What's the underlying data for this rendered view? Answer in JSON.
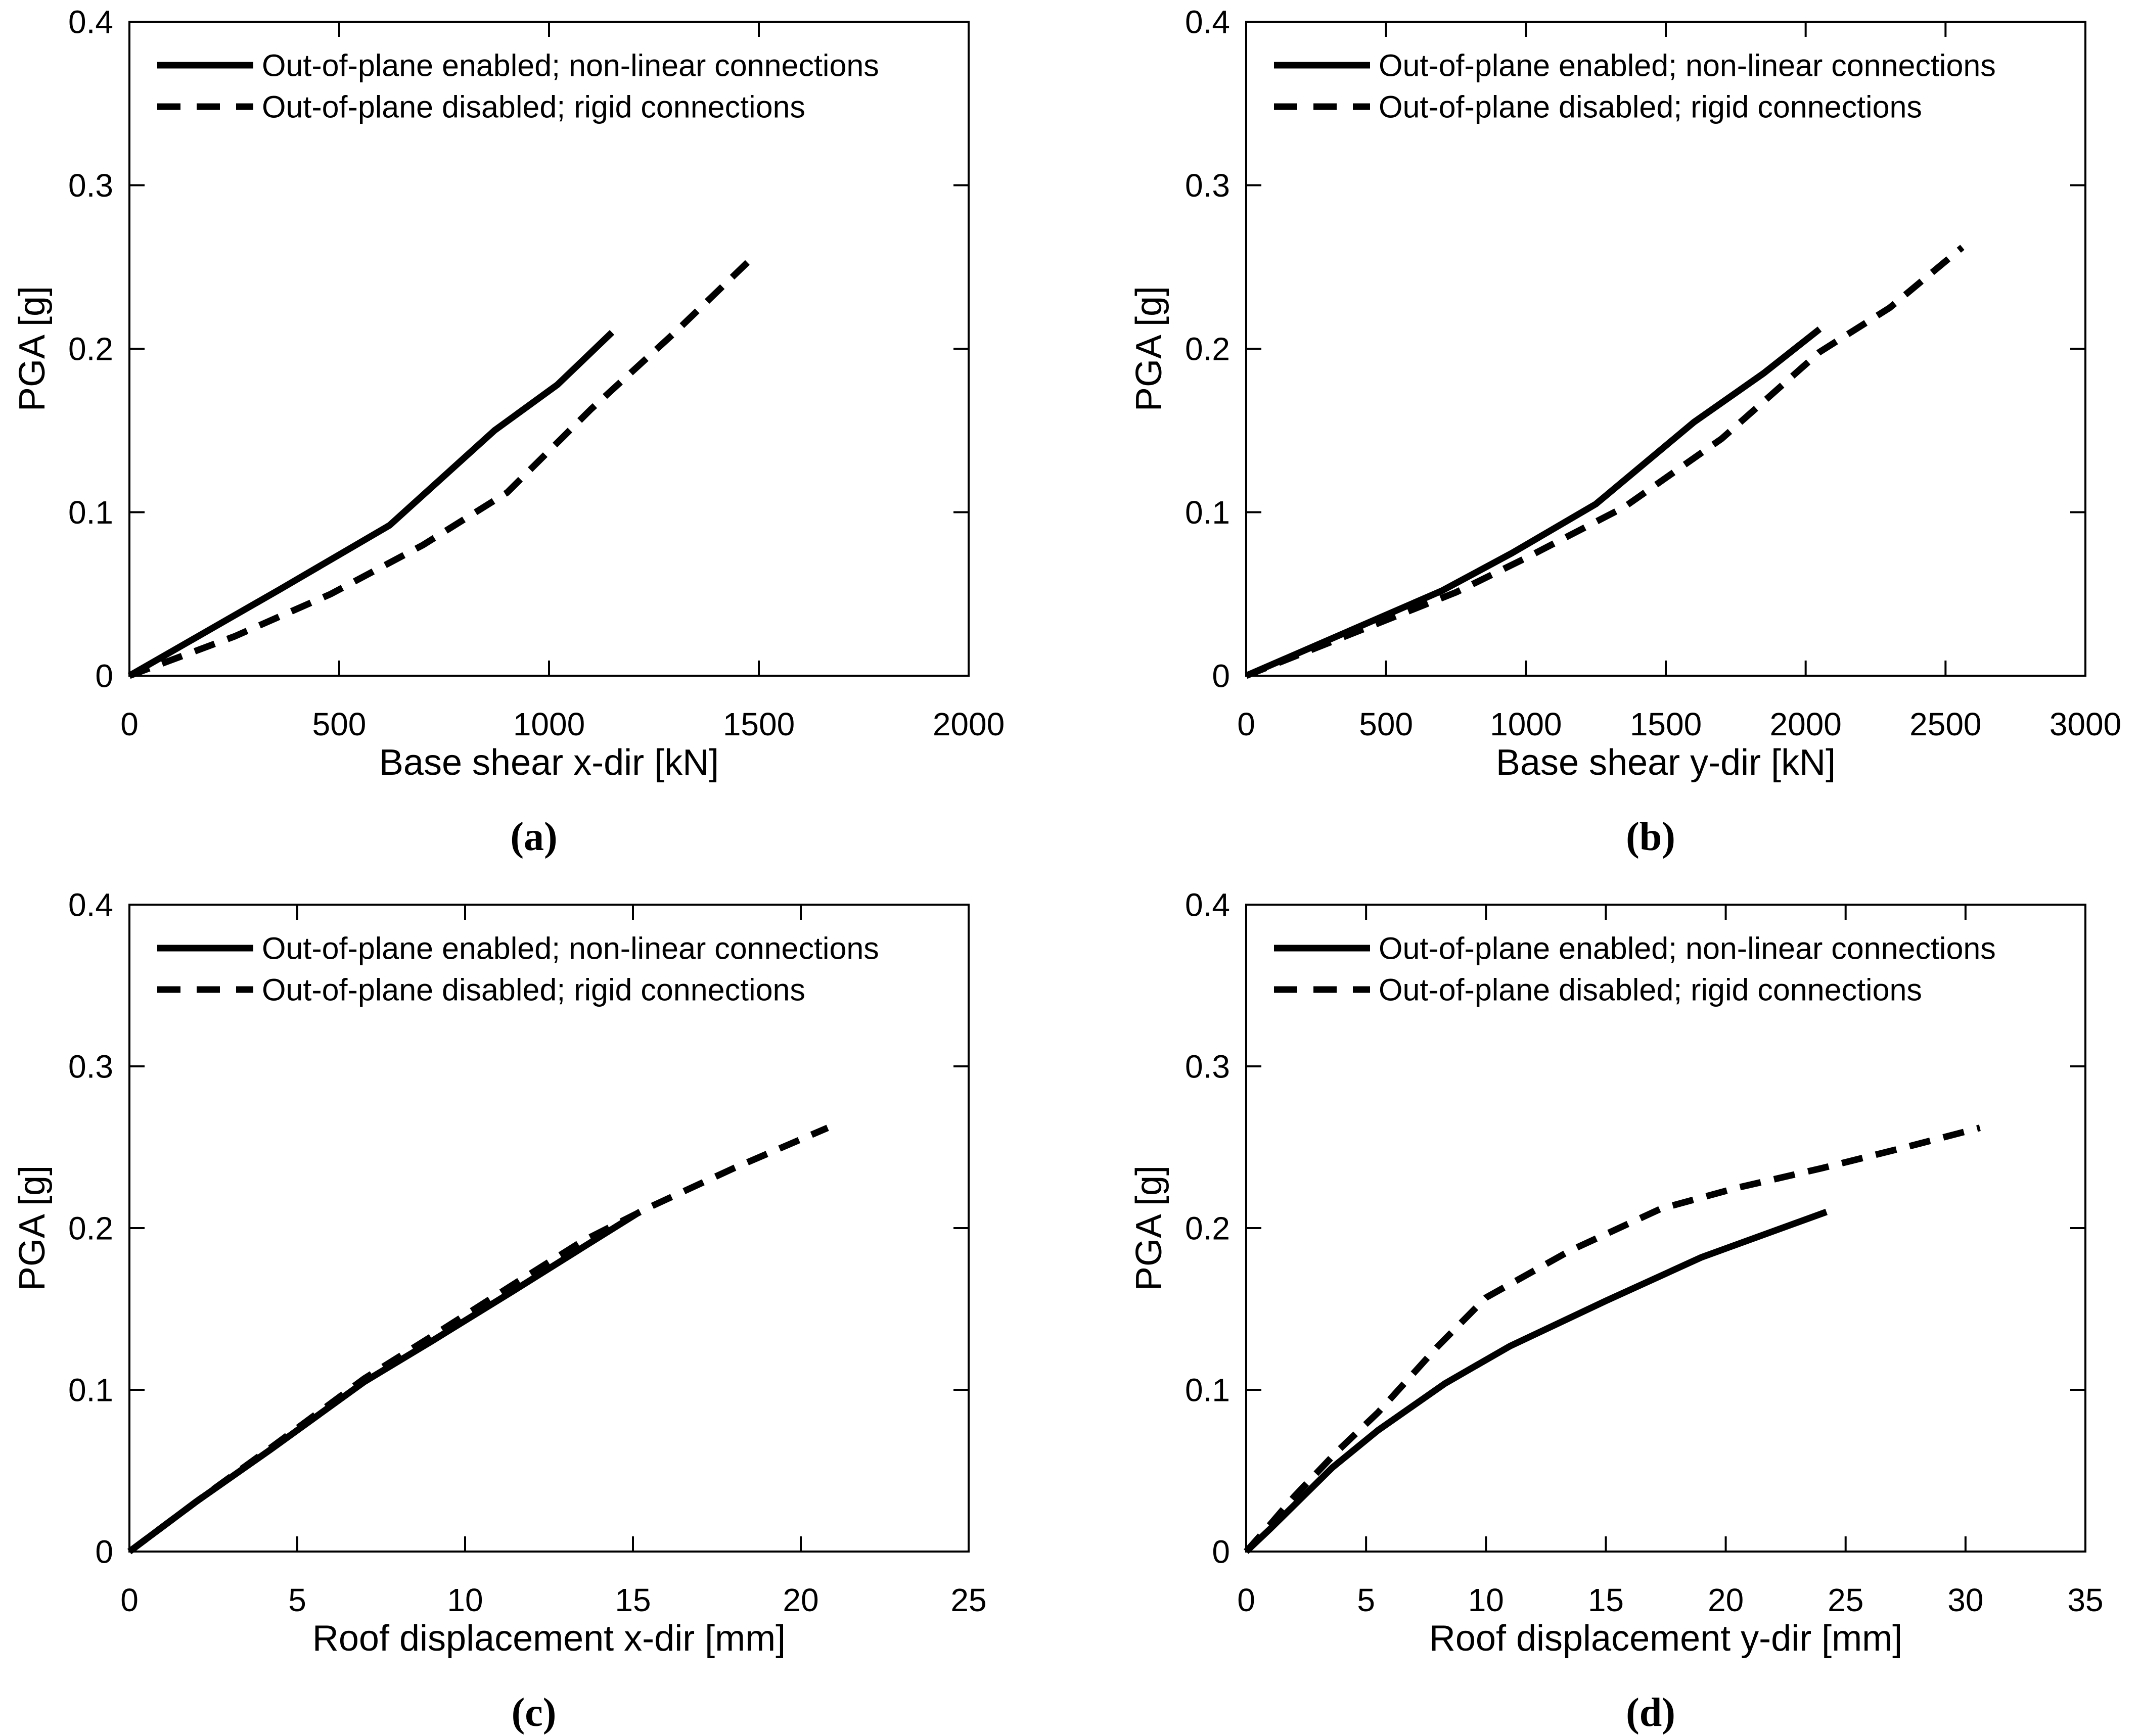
{
  "figure_title": "",
  "chart_data": [
    {
      "id": "a",
      "type": "line",
      "panel_label": "(a)",
      "xlabel": "Base shear x-dir [kN]",
      "ylabel": "PGA [g]",
      "xlim": [
        0,
        2000
      ],
      "ylim": [
        0,
        0.4
      ],
      "xticks": [
        0,
        500,
        1000,
        1500,
        2000
      ],
      "yticks": [
        0,
        0.1,
        0.2,
        0.3,
        0.4
      ],
      "grid": false,
      "legend_position": "top-left",
      "series": [
        {
          "name": "Out-of-plane enabled; non-linear connections",
          "style": "solid",
          "x": [
            0,
            360,
            620,
            870,
            1020,
            1150
          ],
          "y": [
            0,
            0.053,
            0.092,
            0.15,
            0.178,
            0.21
          ]
        },
        {
          "name": "Out-of-plane disabled; rigid connections",
          "style": "dashed",
          "x": [
            0,
            250,
            480,
            700,
            900,
            1100,
            1300,
            1490
          ],
          "y": [
            0,
            0.024,
            0.05,
            0.08,
            0.112,
            0.163,
            0.21,
            0.257
          ]
        }
      ]
    },
    {
      "id": "b",
      "type": "line",
      "panel_label": "(b)",
      "xlabel": "Base shear y-dir [kN]",
      "ylabel": "PGA [g]",
      "xlim": [
        0,
        3000
      ],
      "ylim": [
        0,
        0.4
      ],
      "xticks": [
        0,
        500,
        1000,
        1500,
        2000,
        2500,
        3000
      ],
      "yticks": [
        0,
        0.1,
        0.2,
        0.3,
        0.4
      ],
      "grid": false,
      "legend_position": "top-left",
      "series": [
        {
          "name": "Out-of-plane enabled; non-linear connections",
          "style": "solid",
          "x": [
            0,
            700,
            950,
            1250,
            1600,
            1850,
            2050
          ],
          "y": [
            0,
            0.052,
            0.075,
            0.105,
            0.155,
            0.185,
            0.212
          ]
        },
        {
          "name": "Out-of-plane disabled; rigid connections",
          "style": "dashed",
          "x": [
            0,
            750,
            1000,
            1350,
            1700,
            2050,
            2300,
            2560
          ],
          "y": [
            0,
            0.051,
            0.072,
            0.103,
            0.145,
            0.198,
            0.225,
            0.262
          ]
        }
      ]
    },
    {
      "id": "c",
      "type": "line",
      "panel_label": "(c)",
      "xlabel": "Roof displacement x-dir [mm]",
      "ylabel": "PGA [g]",
      "xlim": [
        0,
        25
      ],
      "ylim": [
        0,
        0.4
      ],
      "xticks": [
        0,
        5,
        10,
        15,
        20,
        25
      ],
      "yticks": [
        0,
        0.1,
        0.2,
        0.3,
        0.4
      ],
      "grid": false,
      "legend_position": "top-left",
      "series": [
        {
          "name": "Out-of-plane enabled; non-linear connections",
          "style": "solid",
          "x": [
            0,
            2,
            4.2,
            7,
            9,
            11.5,
            13.5,
            15.2
          ],
          "y": [
            0,
            0.031,
            0.063,
            0.105,
            0.13,
            0.162,
            0.188,
            0.21
          ]
        },
        {
          "name": "Out-of-plane disabled; rigid connections",
          "style": "dashed",
          "x": [
            0,
            2,
            4.2,
            7,
            9,
            11.5,
            13.5,
            15.5,
            18,
            20.8
          ],
          "y": [
            0,
            0.031,
            0.064,
            0.107,
            0.133,
            0.166,
            0.192,
            0.213,
            0.237,
            0.262
          ]
        }
      ]
    },
    {
      "id": "d",
      "type": "line",
      "panel_label": "(d)",
      "xlabel": "Roof displacement y-dir [mm]",
      "ylabel": "PGA [g]",
      "xlim": [
        0,
        35
      ],
      "ylim": [
        0,
        0.4
      ],
      "xticks": [
        0,
        5,
        10,
        15,
        20,
        25,
        30,
        35
      ],
      "yticks": [
        0,
        0.1,
        0.2,
        0.3,
        0.4
      ],
      "grid": false,
      "legend_position": "top-left",
      "series": [
        {
          "name": "Out-of-plane enabled; non-linear connections",
          "style": "solid",
          "x": [
            0,
            1,
            3.6,
            5.5,
            8.3,
            11,
            15,
            19,
            24.2
          ],
          "y": [
            0,
            0.014,
            0.052,
            0.075,
            0.104,
            0.127,
            0.155,
            0.182,
            0.21
          ]
        },
        {
          "name": "Out-of-plane disabled; rigid connections",
          "style": "dashed",
          "x": [
            0,
            0.9,
            2,
            3.8,
            5.5,
            8,
            10,
            13.5,
            17.3,
            20.5,
            24,
            27.5,
            30.6
          ],
          "y": [
            0,
            0.015,
            0.034,
            0.062,
            0.086,
            0.127,
            0.157,
            0.186,
            0.212,
            0.225,
            0.237,
            0.25,
            0.262
          ]
        }
      ]
    }
  ],
  "colors": {
    "line": "#000000",
    "axis": "#000000",
    "background": "#ffffff"
  }
}
